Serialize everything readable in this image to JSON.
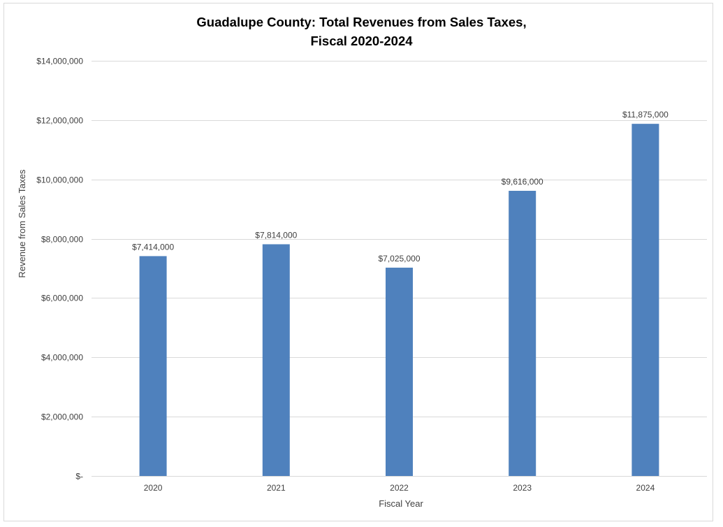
{
  "chart_data": {
    "type": "bar",
    "title_line1": "Guadalupe County: Total Revenues from Sales Taxes,",
    "title_line2": "Fiscal 2020-2024",
    "xlabel": "Fiscal Year",
    "ylabel": "Revenue from Sales Taxes",
    "categories": [
      "2020",
      "2021",
      "2022",
      "2023",
      "2024"
    ],
    "values": [
      7414000,
      7814000,
      7025000,
      9616000,
      11875000
    ],
    "value_labels": [
      "$7,414,000",
      "$7,814,000",
      "$7,025,000",
      "$9,616,000",
      "$11,875,000"
    ],
    "ylim": [
      0,
      14000000
    ],
    "yticks": [
      0,
      2000000,
      4000000,
      6000000,
      8000000,
      10000000,
      12000000,
      14000000
    ],
    "ytick_labels": [
      "$-",
      "$2,000,000",
      "$4,000,000",
      "$6,000,000",
      "$8,000,000",
      "$10,000,000",
      "$12,000,000",
      "$14,000,000"
    ],
    "grid": true,
    "legend": "none",
    "bar_color": "#4f81bd",
    "grid_color": "#d9d9d9"
  }
}
